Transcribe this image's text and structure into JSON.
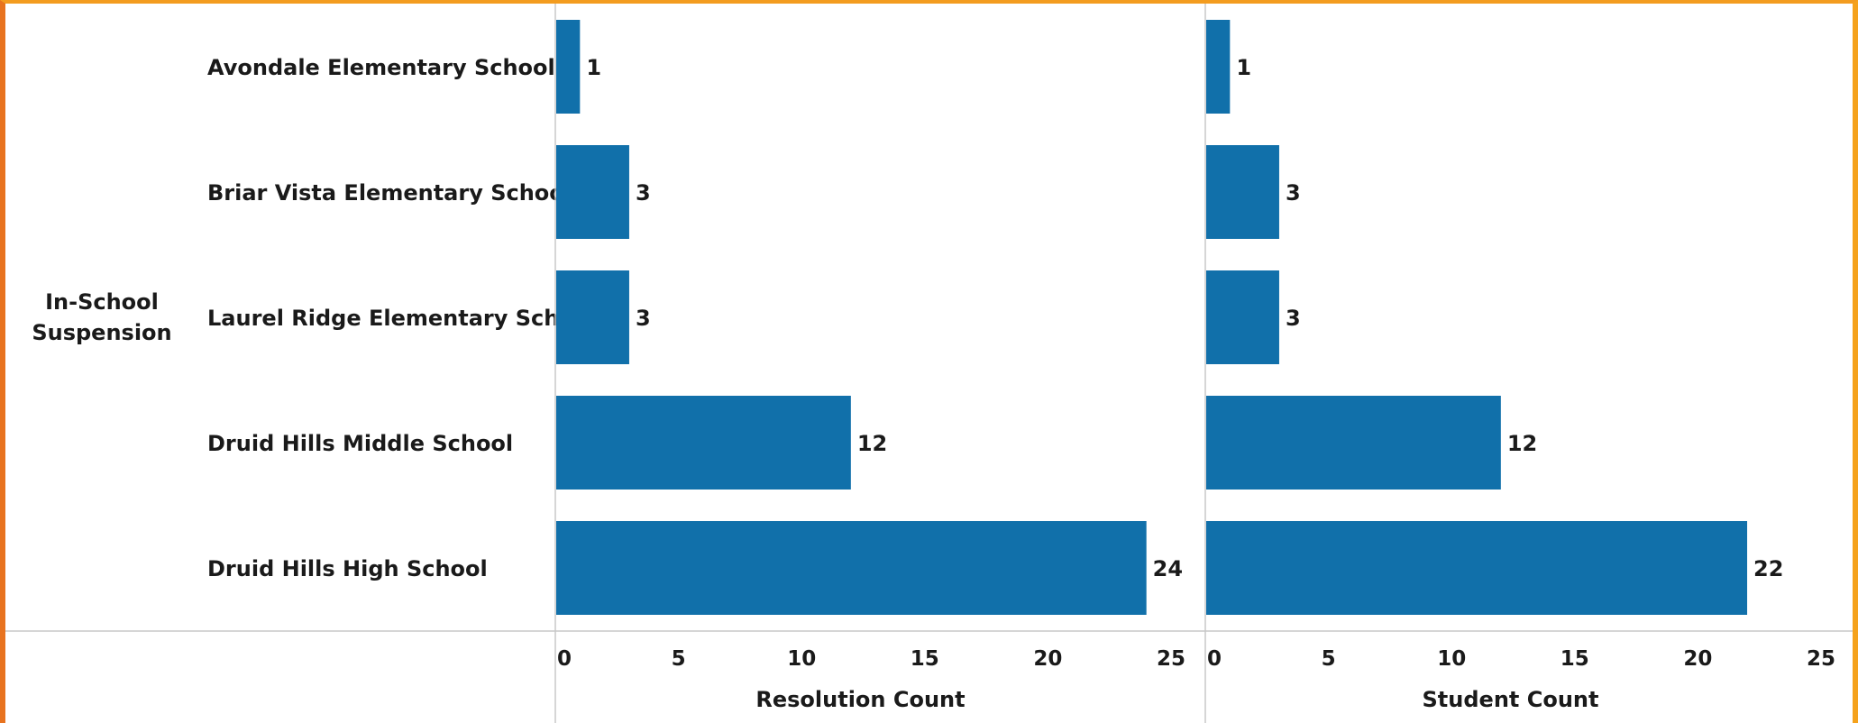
{
  "chart_data": {
    "type": "bar",
    "orientation": "horizontal",
    "row_group": "In-School\nSuspension",
    "categories": [
      "Avondale Elementary School",
      "Briar Vista Elementary School",
      "Laurel Ridge Elementary School",
      "Druid Hills Middle School",
      "Druid Hills High School"
    ],
    "panels": [
      {
        "xlabel": "Resolution Count",
        "values": [
          1,
          3,
          3,
          12,
          24
        ],
        "xlim": [
          0,
          25
        ],
        "ticks": [
          0,
          5,
          10,
          15,
          20,
          25
        ]
      },
      {
        "xlabel": "Student Count",
        "values": [
          1,
          3,
          3,
          12,
          22
        ],
        "xlim": [
          0,
          25
        ],
        "ticks": [
          0,
          5,
          10,
          15,
          20,
          25
        ]
      }
    ],
    "bar_color": "#1170aa",
    "grid": false,
    "legend": "none"
  }
}
